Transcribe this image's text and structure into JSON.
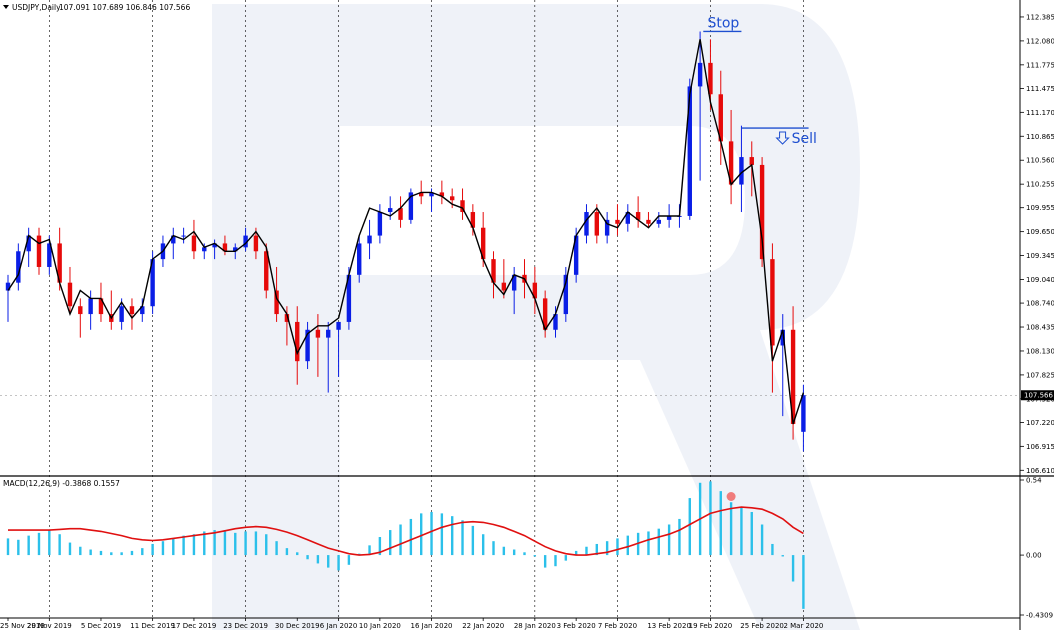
{
  "header": {
    "symbol_text": "USDJPY,Daily",
    "ohlc_text": "107.091 107.689 106.846 107.566",
    "macd_text": "MACD(12,26,9) -0.3868 0.1557"
  },
  "colors": {
    "bull": "#0a1ee6",
    "bear": "#e60a0a",
    "line": "#000000",
    "macd_hist": "#2bc0ea",
    "signal": "#e01010",
    "annotation": "#1e4fd0",
    "grid": "#000000",
    "watermark": "#e9edf6"
  },
  "annotations": {
    "stop": "Stop",
    "sell": "Sell"
  },
  "chart_data": [
    {
      "type": "candlestick",
      "title": "USDJPY,Daily",
      "ylim": [
        106.55,
        112.55
      ],
      "yticks": [
        "112.385",
        "112.080",
        "111.775",
        "111.475",
        "111.170",
        "110.865",
        "110.560",
        "110.255",
        "109.955",
        "109.650",
        "109.345",
        "109.040",
        "108.740",
        "108.435",
        "108.130",
        "107.825",
        "107.520",
        "107.220",
        "106.915",
        "106.610"
      ],
      "current_price_label": "107.566",
      "current_price": 107.566,
      "xticks": [
        "25 Nov 2019",
        "29 Nov 2019",
        "5 Dec 2019",
        "11 Dec 2019",
        "17 Dec 2019",
        "23 Dec 2019",
        "30 Dec 2019",
        "6 Jan 2020",
        "10 Jan 2020",
        "16 Jan 2020",
        "22 Jan 2020",
        "28 Jan 2020",
        "3 Feb 2020",
        "7 Feb 2020",
        "13 Feb 2020",
        "19 Feb 2020",
        "25 Feb 2020",
        "2 Mar 2020"
      ],
      "xtick_index": [
        0,
        4,
        9,
        14,
        18,
        23,
        28,
        32,
        36,
        41,
        46,
        51,
        55,
        59,
        64,
        68,
        73,
        77
      ],
      "grid_index": [
        4,
        14,
        23,
        32,
        41,
        51,
        59,
        68,
        77
      ],
      "stop_price": 112.2,
      "sell_price": 110.97,
      "stop_index": [
        67.5,
        71.0
      ],
      "sell_index": [
        71.0,
        77.5
      ],
      "candles": [
        [
          108.9,
          109.1,
          108.5,
          109.0
        ],
        [
          109.0,
          109.5,
          108.9,
          109.4
        ],
        [
          109.4,
          109.7,
          109.2,
          109.6
        ],
        [
          109.6,
          109.7,
          109.1,
          109.2
        ],
        [
          109.2,
          109.6,
          109.1,
          109.5
        ],
        [
          109.5,
          109.7,
          108.9,
          109.0
        ],
        [
          109.0,
          109.2,
          108.6,
          108.7
        ],
        [
          108.7,
          108.8,
          108.3,
          108.6
        ],
        [
          108.6,
          108.9,
          108.4,
          108.8
        ],
        [
          108.8,
          109.0,
          108.5,
          108.6
        ],
        [
          108.6,
          108.9,
          108.4,
          108.5
        ],
        [
          108.5,
          108.8,
          108.4,
          108.7
        ],
        [
          108.7,
          108.8,
          108.4,
          108.6
        ],
        [
          108.6,
          108.8,
          108.5,
          108.7
        ],
        [
          108.7,
          109.4,
          108.6,
          109.3
        ],
        [
          109.3,
          109.6,
          109.2,
          109.5
        ],
        [
          109.5,
          109.7,
          109.3,
          109.6
        ],
        [
          109.6,
          109.7,
          109.5,
          109.6
        ],
        [
          109.6,
          109.8,
          109.3,
          109.4
        ],
        [
          109.4,
          109.5,
          109.3,
          109.45
        ],
        [
          109.45,
          109.55,
          109.3,
          109.5
        ],
        [
          109.5,
          109.6,
          109.35,
          109.4
        ],
        [
          109.4,
          109.5,
          109.3,
          109.45
        ],
        [
          109.45,
          109.7,
          109.4,
          109.6
        ],
        [
          109.6,
          109.7,
          109.3,
          109.4
        ],
        [
          109.4,
          109.5,
          108.8,
          108.9
        ],
        [
          108.9,
          109.2,
          108.5,
          108.6
        ],
        [
          108.6,
          108.7,
          108.2,
          108.5
        ],
        [
          108.5,
          108.7,
          107.7,
          108.0
        ],
        [
          108.0,
          108.5,
          107.9,
          108.4
        ],
        [
          108.4,
          108.6,
          107.8,
          108.3
        ],
        [
          108.3,
          108.5,
          107.6,
          108.4
        ],
        [
          108.4,
          108.5,
          107.8,
          108.5
        ],
        [
          108.5,
          109.2,
          108.4,
          109.1
        ],
        [
          109.1,
          109.6,
          109.0,
          109.5
        ],
        [
          109.5,
          109.8,
          109.3,
          109.6
        ],
        [
          109.6,
          110.0,
          109.5,
          109.9
        ],
        [
          109.9,
          110.1,
          109.8,
          109.95
        ],
        [
          109.95,
          110.1,
          109.7,
          109.8
        ],
        [
          109.8,
          110.2,
          109.75,
          110.15
        ],
        [
          110.15,
          110.3,
          110.0,
          110.1
        ],
        [
          110.1,
          110.2,
          109.9,
          110.15
        ],
        [
          110.15,
          110.3,
          110.0,
          110.1
        ],
        [
          110.1,
          110.2,
          109.95,
          110.05
        ],
        [
          110.05,
          110.2,
          109.8,
          109.9
        ],
        [
          109.9,
          110.0,
          109.6,
          109.7
        ],
        [
          109.7,
          109.9,
          109.2,
          109.3
        ],
        [
          109.3,
          109.4,
          108.8,
          109.0
        ],
        [
          109.0,
          109.3,
          108.8,
          108.9
        ],
        [
          108.9,
          109.2,
          108.6,
          109.1
        ],
        [
          109.1,
          109.3,
          108.8,
          109.0
        ],
        [
          109.0,
          109.2,
          108.6,
          108.8
        ],
        [
          108.8,
          108.9,
          108.3,
          108.4
        ],
        [
          108.4,
          108.7,
          108.3,
          108.6
        ],
        [
          108.6,
          109.2,
          108.5,
          109.1
        ],
        [
          109.1,
          109.7,
          109.0,
          109.6
        ],
        [
          109.6,
          110.0,
          109.5,
          109.9
        ],
        [
          109.9,
          110.0,
          109.5,
          109.6
        ],
        [
          109.6,
          109.9,
          109.5,
          109.8
        ],
        [
          109.8,
          110.0,
          109.6,
          109.75
        ],
        [
          109.75,
          110.0,
          109.65,
          109.9
        ],
        [
          109.9,
          110.1,
          109.7,
          109.8
        ],
        [
          109.8,
          109.9,
          109.7,
          109.75
        ],
        [
          109.75,
          109.9,
          109.7,
          109.8
        ],
        [
          109.8,
          110.0,
          109.7,
          109.85
        ],
        [
          109.85,
          110.0,
          109.7,
          109.85
        ],
        [
          109.85,
          111.6,
          109.8,
          111.5
        ],
        [
          111.5,
          112.2,
          110.3,
          111.8
        ],
        [
          111.8,
          112.1,
          111.2,
          111.4
        ],
        [
          111.4,
          111.7,
          110.5,
          110.8
        ],
        [
          110.8,
          111.2,
          110.0,
          110.25
        ],
        [
          110.25,
          111.0,
          109.9,
          110.6
        ],
        [
          110.6,
          110.8,
          110.1,
          110.5
        ],
        [
          110.5,
          110.6,
          109.2,
          109.3
        ],
        [
          109.3,
          109.5,
          107.6,
          108.2
        ],
        [
          108.2,
          108.6,
          107.3,
          108.4
        ],
        [
          108.4,
          108.7,
          107.0,
          107.2
        ],
        [
          107.1,
          107.7,
          106.85,
          107.566
        ]
      ],
      "line_values": [
        108.9,
        109.1,
        109.6,
        109.5,
        109.55,
        109.0,
        108.6,
        108.9,
        108.8,
        108.8,
        108.55,
        108.75,
        108.55,
        108.7,
        109.3,
        109.4,
        109.6,
        109.55,
        109.65,
        109.45,
        109.5,
        109.4,
        109.4,
        109.5,
        109.65,
        109.45,
        108.8,
        108.6,
        108.1,
        108.35,
        108.45,
        108.45,
        108.55,
        109.1,
        109.6,
        109.95,
        109.9,
        109.85,
        109.95,
        110.1,
        110.15,
        110.15,
        110.1,
        110.0,
        109.95,
        109.7,
        109.3,
        109.0,
        108.85,
        109.1,
        109.05,
        108.8,
        108.4,
        108.6,
        109.0,
        109.6,
        109.8,
        109.95,
        109.75,
        109.7,
        109.9,
        109.8,
        109.7,
        109.85,
        109.85,
        109.85,
        111.4,
        112.1,
        111.3,
        110.8,
        110.25,
        110.4,
        110.5,
        109.55,
        108.0,
        108.4,
        107.2,
        107.6
      ]
    },
    {
      "type": "bar",
      "title": "MACD(12,26,9)",
      "ylim": [
        -0.4309,
        0.54
      ],
      "yticks": [
        "0.54",
        "0.00",
        "-0.4309"
      ],
      "macd_values": [
        0.12,
        0.11,
        0.14,
        0.16,
        0.18,
        0.15,
        0.09,
        0.06,
        0.04,
        0.03,
        0.02,
        0.02,
        0.03,
        0.05,
        0.08,
        0.1,
        0.12,
        0.14,
        0.15,
        0.17,
        0.18,
        0.18,
        0.16,
        0.17,
        0.17,
        0.15,
        0.1,
        0.05,
        0.02,
        -0.03,
        -0.06,
        -0.09,
        -0.11,
        -0.07,
        0.01,
        0.07,
        0.13,
        0.18,
        0.22,
        0.26,
        0.3,
        0.31,
        0.3,
        0.28,
        0.25,
        0.21,
        0.15,
        0.1,
        0.06,
        0.04,
        0.02,
        -0.01,
        -0.09,
        -0.08,
        -0.04,
        0.03,
        0.06,
        0.08,
        0.1,
        0.12,
        0.14,
        0.16,
        0.17,
        0.19,
        0.22,
        0.26,
        0.41,
        0.52,
        0.53,
        0.46,
        0.38,
        0.34,
        0.31,
        0.22,
        0.08,
        -0.01,
        -0.19,
        -0.3868
      ],
      "signal_values": [
        0.18,
        0.18,
        0.18,
        0.18,
        0.18,
        0.185,
        0.19,
        0.19,
        0.18,
        0.17,
        0.155,
        0.14,
        0.12,
        0.11,
        0.105,
        0.11,
        0.12,
        0.13,
        0.14,
        0.15,
        0.16,
        0.175,
        0.19,
        0.2,
        0.205,
        0.2,
        0.185,
        0.165,
        0.14,
        0.11,
        0.08,
        0.05,
        0.03,
        0.01,
        0.0,
        0.005,
        0.02,
        0.05,
        0.08,
        0.11,
        0.14,
        0.17,
        0.2,
        0.22,
        0.235,
        0.24,
        0.235,
        0.22,
        0.2,
        0.17,
        0.14,
        0.1,
        0.06,
        0.03,
        0.01,
        0.0,
        0.0,
        0.01,
        0.02,
        0.04,
        0.06,
        0.085,
        0.11,
        0.13,
        0.15,
        0.18,
        0.22,
        0.26,
        0.3,
        0.32,
        0.335,
        0.345,
        0.34,
        0.33,
        0.3,
        0.26,
        0.2,
        0.1557
      ],
      "marker_index": 70
    }
  ]
}
